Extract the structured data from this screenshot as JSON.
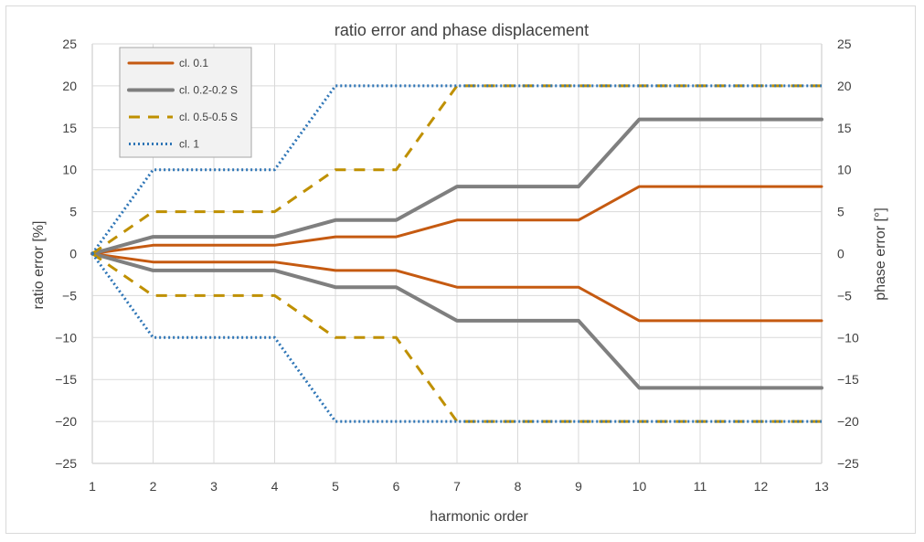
{
  "chart_data": {
    "type": "line",
    "title": "ratio error and phase displacement",
    "xlabel": "harmonic order",
    "ylabel": "ratio error [%]",
    "y2label": "phase error [°]",
    "x": [
      1,
      2,
      3,
      4,
      5,
      6,
      7,
      8,
      9,
      10,
      11,
      12,
      13
    ],
    "xlim": [
      1,
      13
    ],
    "ylim": [
      -25,
      25
    ],
    "y2lim": [
      -25,
      25
    ],
    "yticks": [
      25,
      20,
      15,
      10,
      5,
      0,
      -5,
      -10,
      -15,
      -20,
      -25
    ],
    "grid": true,
    "legend_position": "top-left",
    "series": [
      {
        "name": "cl. 0.1",
        "color": "#c55a11",
        "style": "solid",
        "upper": [
          0,
          1,
          1,
          1,
          2,
          2,
          4,
          4,
          4,
          8,
          8,
          8,
          8
        ],
        "lower": [
          0,
          -1,
          -1,
          -1,
          -2,
          -2,
          -4,
          -4,
          -4,
          -8,
          -8,
          -8,
          -8
        ]
      },
      {
        "name": "cl. 0.2-0.2 S",
        "color": "#7f7f7f",
        "style": "solid-thick",
        "upper": [
          0,
          2,
          2,
          2,
          4,
          4,
          8,
          8,
          8,
          16,
          16,
          16,
          16
        ],
        "lower": [
          0,
          -2,
          -2,
          -2,
          -4,
          -4,
          -8,
          -8,
          -8,
          -16,
          -16,
          -16,
          -16
        ]
      },
      {
        "name": "cl. 0.5-0.5 S",
        "color": "#bf9000",
        "style": "dashed",
        "upper": [
          0,
          5,
          5,
          5,
          10,
          10,
          20,
          20,
          20,
          20,
          20,
          20,
          20
        ],
        "lower": [
          0,
          -5,
          -5,
          -5,
          -10,
          -10,
          -20,
          -20,
          -20,
          -20,
          -20,
          -20,
          -20
        ]
      },
      {
        "name": "cl. 1",
        "color": "#2e75b6",
        "style": "dotted",
        "upper": [
          0,
          10,
          10,
          10,
          20,
          20,
          20,
          20,
          20,
          20,
          20,
          20,
          20
        ],
        "lower": [
          0,
          -10,
          -10,
          -10,
          -20,
          -20,
          -20,
          -20,
          -20,
          -20,
          -20,
          -20,
          -20
        ]
      }
    ]
  }
}
